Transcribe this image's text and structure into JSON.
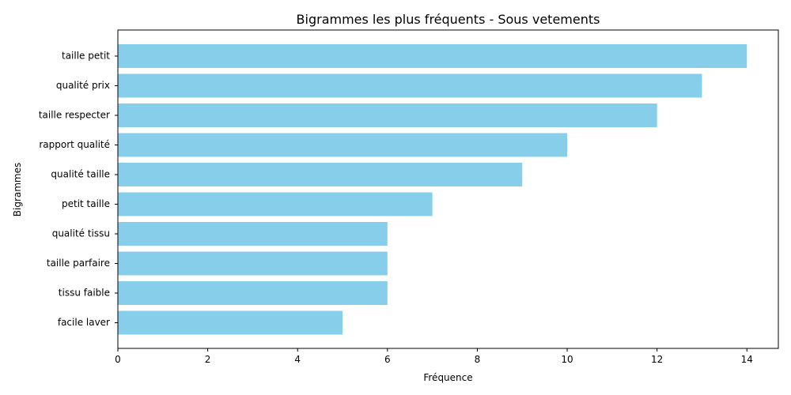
{
  "chart_data": {
    "type": "bar",
    "orientation": "horizontal",
    "title": "Bigrammes les plus fréquents - Sous vetements",
    "xlabel": "Fréquence",
    "ylabel": "Bigrammes",
    "categories": [
      "taille petit",
      "qualité prix",
      "taille respecter",
      "rapport qualité",
      "qualité taille",
      "petit taille",
      "qualité tissu",
      "taille parfaire",
      "tissu faible",
      "facile laver"
    ],
    "values": [
      14,
      13,
      12,
      10,
      9,
      7,
      6,
      6,
      6,
      5
    ],
    "xlim": [
      0,
      14.7
    ],
    "xticks": [
      0,
      2,
      4,
      6,
      8,
      10,
      12,
      14
    ],
    "grid": false,
    "legend": "none",
    "bar_color": "#87ceeb"
  }
}
